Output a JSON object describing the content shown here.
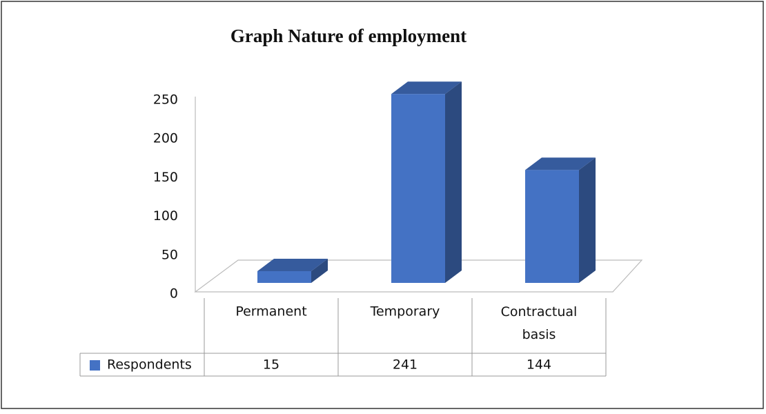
{
  "chart_data": {
    "type": "bar3d",
    "title": "Graph  Nature of employment",
    "categories": [
      "Permanent",
      "Temporary",
      "Contractual basis"
    ],
    "series": [
      {
        "name": "Respondents",
        "color": "#4472c4",
        "values": [
          15,
          241,
          144
        ]
      }
    ],
    "ylim": [
      0,
      250
    ],
    "yticks": [
      0,
      50,
      100,
      150,
      200,
      250
    ]
  }
}
